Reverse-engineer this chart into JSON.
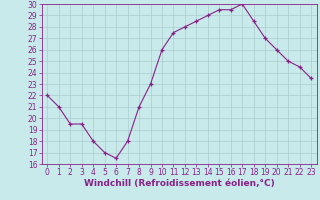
{
  "x": [
    0,
    1,
    2,
    3,
    4,
    5,
    6,
    7,
    8,
    9,
    10,
    11,
    12,
    13,
    14,
    15,
    16,
    17,
    18,
    19,
    20,
    21,
    22,
    23
  ],
  "y": [
    22,
    21,
    19.5,
    19.5,
    18,
    17,
    16.5,
    18,
    21,
    23,
    26,
    27.5,
    28,
    28.5,
    29,
    29.5,
    29.5,
    30,
    28.5,
    27,
    26,
    25,
    24.5,
    23.5
  ],
  "line_color": "#882288",
  "marker": "+",
  "bg_color": "#c8eaea",
  "grid_color": "#aacccc",
  "xlabel": "Windchill (Refroidissement éolien,°C)",
  "xlabel_color": "#882288",
  "ylim": [
    16,
    30
  ],
  "xlim": [
    -0.5,
    23.5
  ],
  "yticks": [
    16,
    17,
    18,
    19,
    20,
    21,
    22,
    23,
    24,
    25,
    26,
    27,
    28,
    29,
    30
  ],
  "xticks": [
    0,
    1,
    2,
    3,
    4,
    5,
    6,
    7,
    8,
    9,
    10,
    11,
    12,
    13,
    14,
    15,
    16,
    17,
    18,
    19,
    20,
    21,
    22,
    23
  ],
  "tick_color": "#882288",
  "tick_fontsize": 5.5,
  "xlabel_fontsize": 6.5,
  "spine_color": "#882288"
}
